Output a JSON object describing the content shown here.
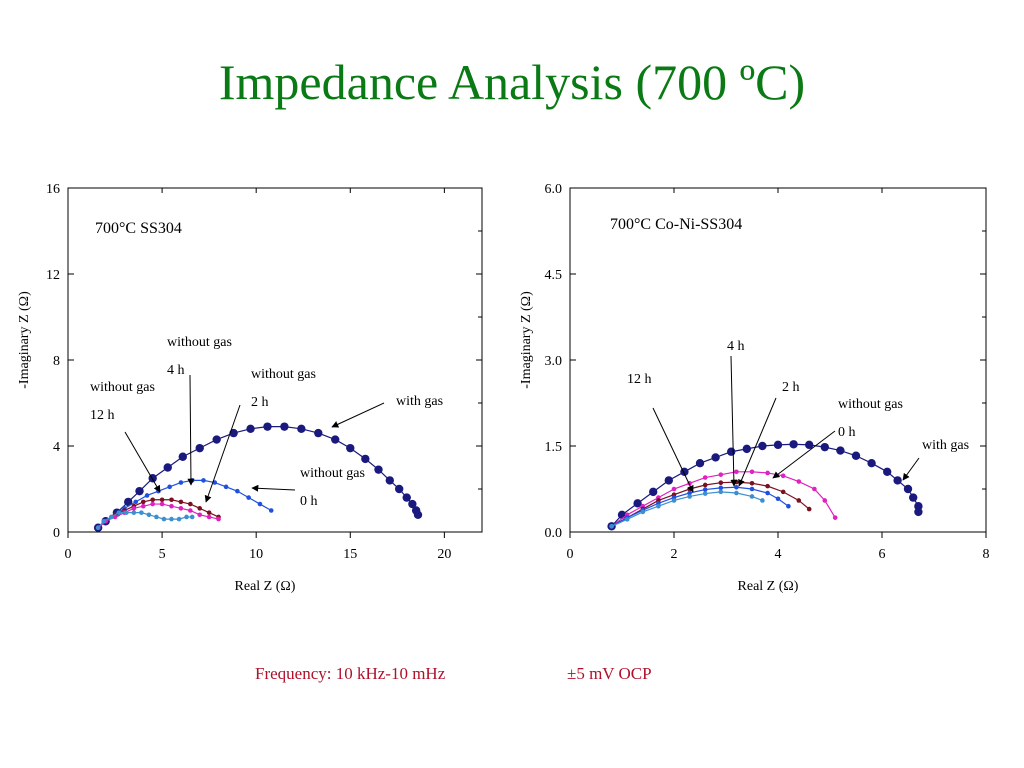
{
  "slide": {
    "title": "Impedance Analysis (700 ºC)",
    "footer_frequency": "Frequency: 10 kHz-10 mHz",
    "footer_ocp": "±5 mV OCP"
  },
  "chart_data": [
    {
      "type": "scatter",
      "title": "700°C SS304",
      "xlabel": "Real Z (Ω)",
      "ylabel": "-Imaginary Z (Ω)",
      "xlim": [
        0,
        22
      ],
      "ylim": [
        0,
        16
      ],
      "xticks": [
        "0",
        "5",
        "10",
        "15",
        "20"
      ],
      "yticks": [
        "0",
        "4",
        "8",
        "12",
        "16"
      ],
      "grid": false,
      "annotations": [
        {
          "lines": [
            "without gas",
            "4 h"
          ]
        },
        {
          "lines": [
            "without gas",
            "12 h"
          ]
        },
        {
          "lines": [
            "without gas",
            "2 h"
          ]
        },
        {
          "lines": [
            "with gas"
          ]
        },
        {
          "lines": [
            "without gas",
            "0 h"
          ]
        }
      ],
      "series": [
        {
          "color": "#1a1a7e",
          "marker": "large-dot",
          "x": [
            1.6,
            2.0,
            2.6,
            3.2,
            3.8,
            4.5,
            5.3,
            6.1,
            7.0,
            7.9,
            8.8,
            9.7,
            10.6,
            11.5,
            12.4,
            13.3,
            14.2,
            15.0,
            15.8,
            16.5,
            17.1,
            17.6,
            18.0,
            18.3,
            18.5,
            18.6
          ],
          "y": [
            0.2,
            0.5,
            0.9,
            1.4,
            1.9,
            2.5,
            3.0,
            3.5,
            3.9,
            4.3,
            4.6,
            4.8,
            4.9,
            4.9,
            4.8,
            4.6,
            4.3,
            3.9,
            3.4,
            2.9,
            2.4,
            2.0,
            1.6,
            1.3,
            1.0,
            0.8
          ]
        },
        {
          "color": "#2050e0",
          "marker": "dot",
          "x": [
            1.6,
            2.0,
            2.5,
            3.0,
            3.6,
            4.2,
            4.8,
            5.4,
            6.0,
            6.6,
            7.2,
            7.8,
            8.4,
            9.0,
            9.6,
            10.2,
            10.8
          ],
          "y": [
            0.2,
            0.5,
            0.8,
            1.1,
            1.4,
            1.7,
            1.9,
            2.1,
            2.3,
            2.4,
            2.4,
            2.3,
            2.1,
            1.9,
            1.6,
            1.3,
            1.0
          ]
        },
        {
          "color": "#7a1020",
          "marker": "dot",
          "x": [
            1.6,
            2.0,
            2.5,
            3.0,
            3.5,
            4.0,
            4.5,
            5.0,
            5.5,
            6.0,
            6.5,
            7.0,
            7.5,
            8.0
          ],
          "y": [
            0.2,
            0.5,
            0.8,
            1.0,
            1.2,
            1.4,
            1.5,
            1.5,
            1.5,
            1.4,
            1.3,
            1.1,
            0.9,
            0.7
          ]
        },
        {
          "color": "#e020c0",
          "marker": "dot",
          "x": [
            1.6,
            2.0,
            2.5,
            3.0,
            3.5,
            4.0,
            4.5,
            5.0,
            5.5,
            6.0,
            6.5,
            7.0,
            7.5,
            8.0
          ],
          "y": [
            0.2,
            0.5,
            0.7,
            0.9,
            1.1,
            1.2,
            1.3,
            1.3,
            1.2,
            1.1,
            1.0,
            0.8,
            0.7,
            0.6
          ]
        },
        {
          "color": "#3a90d0",
          "marker": "dot",
          "x": [
            1.6,
            1.9,
            2.3,
            2.7,
            3.1,
            3.5,
            3.9,
            4.3,
            4.7,
            5.1,
            5.5,
            5.9,
            6.3,
            6.6
          ],
          "y": [
            0.2,
            0.5,
            0.7,
            0.9,
            0.9,
            0.9,
            0.9,
            0.8,
            0.7,
            0.6,
            0.6,
            0.6,
            0.7,
            0.7
          ]
        }
      ]
    },
    {
      "type": "scatter",
      "title": "700°C Co-Ni-SS304",
      "xlabel": "Real Z (Ω)",
      "ylabel": "-Imaginary Z (Ω)",
      "xlim": [
        0,
        8
      ],
      "ylim": [
        0,
        6
      ],
      "xticks": [
        "0",
        "2",
        "4",
        "6",
        "8"
      ],
      "yticks": [
        "0.0",
        "1.5",
        "3.0",
        "4.5",
        "6.0"
      ],
      "grid": false,
      "annotations": [
        {
          "lines": [
            "4 h"
          ]
        },
        {
          "lines": [
            "12 h"
          ]
        },
        {
          "lines": [
            "2 h"
          ]
        },
        {
          "lines": [
            "without gas",
            "0 h"
          ]
        },
        {
          "lines": [
            "with gas"
          ]
        }
      ],
      "series": [
        {
          "color": "#1a1a7e",
          "marker": "large-dot",
          "x": [
            0.8,
            1.0,
            1.3,
            1.6,
            1.9,
            2.2,
            2.5,
            2.8,
            3.1,
            3.4,
            3.7,
            4.0,
            4.3,
            4.6,
            4.9,
            5.2,
            5.5,
            5.8,
            6.1,
            6.3,
            6.5,
            6.6,
            6.7,
            6.7
          ],
          "y": [
            0.1,
            0.3,
            0.5,
            0.7,
            0.9,
            1.05,
            1.2,
            1.3,
            1.4,
            1.45,
            1.5,
            1.52,
            1.53,
            1.52,
            1.48,
            1.42,
            1.33,
            1.2,
            1.05,
            0.9,
            0.75,
            0.6,
            0.45,
            0.35
          ]
        },
        {
          "color": "#e020c0",
          "marker": "dot",
          "x": [
            0.8,
            1.1,
            1.4,
            1.7,
            2.0,
            2.3,
            2.6,
            2.9,
            3.2,
            3.5,
            3.8,
            4.1,
            4.4,
            4.7,
            4.9,
            5.1
          ],
          "y": [
            0.1,
            0.3,
            0.45,
            0.6,
            0.75,
            0.85,
            0.95,
            1.0,
            1.05,
            1.05,
            1.03,
            0.98,
            0.88,
            0.75,
            0.55,
            0.25
          ]
        },
        {
          "color": "#7a1020",
          "marker": "dot",
          "x": [
            0.8,
            1.1,
            1.4,
            1.7,
            2.0,
            2.3,
            2.6,
            2.9,
            3.2,
            3.5,
            3.8,
            4.1,
            4.4,
            4.6
          ],
          "y": [
            0.1,
            0.25,
            0.4,
            0.55,
            0.65,
            0.75,
            0.82,
            0.86,
            0.87,
            0.85,
            0.8,
            0.7,
            0.55,
            0.4
          ]
        },
        {
          "color": "#2050e0",
          "marker": "dot",
          "x": [
            0.8,
            1.1,
            1.4,
            1.7,
            2.0,
            2.3,
            2.6,
            2.9,
            3.2,
            3.5,
            3.8,
            4.0,
            4.2
          ],
          "y": [
            0.1,
            0.25,
            0.38,
            0.5,
            0.6,
            0.68,
            0.74,
            0.77,
            0.78,
            0.75,
            0.68,
            0.58,
            0.45
          ]
        },
        {
          "color": "#3a90d0",
          "marker": "dot",
          "x": [
            0.8,
            1.1,
            1.4,
            1.7,
            2.0,
            2.3,
            2.6,
            2.9,
            3.2,
            3.5,
            3.7
          ],
          "y": [
            0.1,
            0.22,
            0.35,
            0.45,
            0.55,
            0.62,
            0.67,
            0.7,
            0.68,
            0.62,
            0.55
          ]
        }
      ]
    }
  ]
}
